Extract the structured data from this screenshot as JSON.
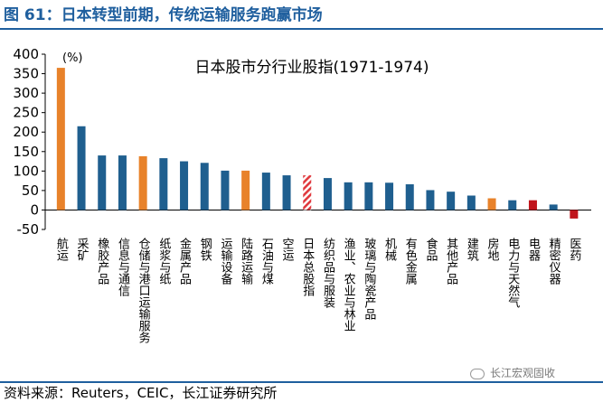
{
  "figure_title": "图 61：日本转型前期，传统运输服务跑赢市场",
  "source": "资料来源：Reuters，CEIC，长江证券研究所",
  "watermark": "长江宏观固收",
  "colors": {
    "blue": "#1f5f8f",
    "orange": "#e8822a",
    "red": "#c0141b",
    "stripe": "#e0393e",
    "title": "#1f5f9e"
  },
  "chart_data": {
    "type": "bar",
    "title": "日本股市分行业股指(1971-1974)",
    "unit_label": "(%)",
    "ylim": [
      -50,
      400
    ],
    "yticks": [
      400,
      350,
      300,
      250,
      200,
      150,
      100,
      50,
      0,
      -50
    ],
    "categories": [
      "航运",
      "采矿",
      "橡胶产品",
      "信息与通信",
      "仓储与港口运输服务",
      "纸浆与纸",
      "金属产品",
      "钢铁",
      "运输设备",
      "陆路运输",
      "石油与煤",
      "空运",
      "日本总股指",
      "纺织品与服装",
      "渔业、农业与林业",
      "玻璃与陶瓷产品",
      "机械",
      "有色金属",
      "食品",
      "其他产品",
      "建筑",
      "房地",
      "电力与天然气",
      "电器",
      "精密仪器",
      "医药"
    ],
    "values": [
      365,
      215,
      140,
      140,
      138,
      133,
      125,
      121,
      101,
      101,
      96,
      89,
      89,
      82,
      71,
      71,
      70,
      66,
      51,
      47,
      37,
      30,
      25,
      25,
      14,
      -22
    ],
    "bar_styles": [
      "orange",
      "blue",
      "blue",
      "blue",
      "orange",
      "blue",
      "blue",
      "blue",
      "blue",
      "orange",
      "blue",
      "blue",
      "stripe",
      "blue",
      "blue",
      "blue",
      "blue",
      "blue",
      "blue",
      "blue",
      "blue",
      "orange",
      "blue",
      "red",
      "blue",
      "red"
    ]
  }
}
